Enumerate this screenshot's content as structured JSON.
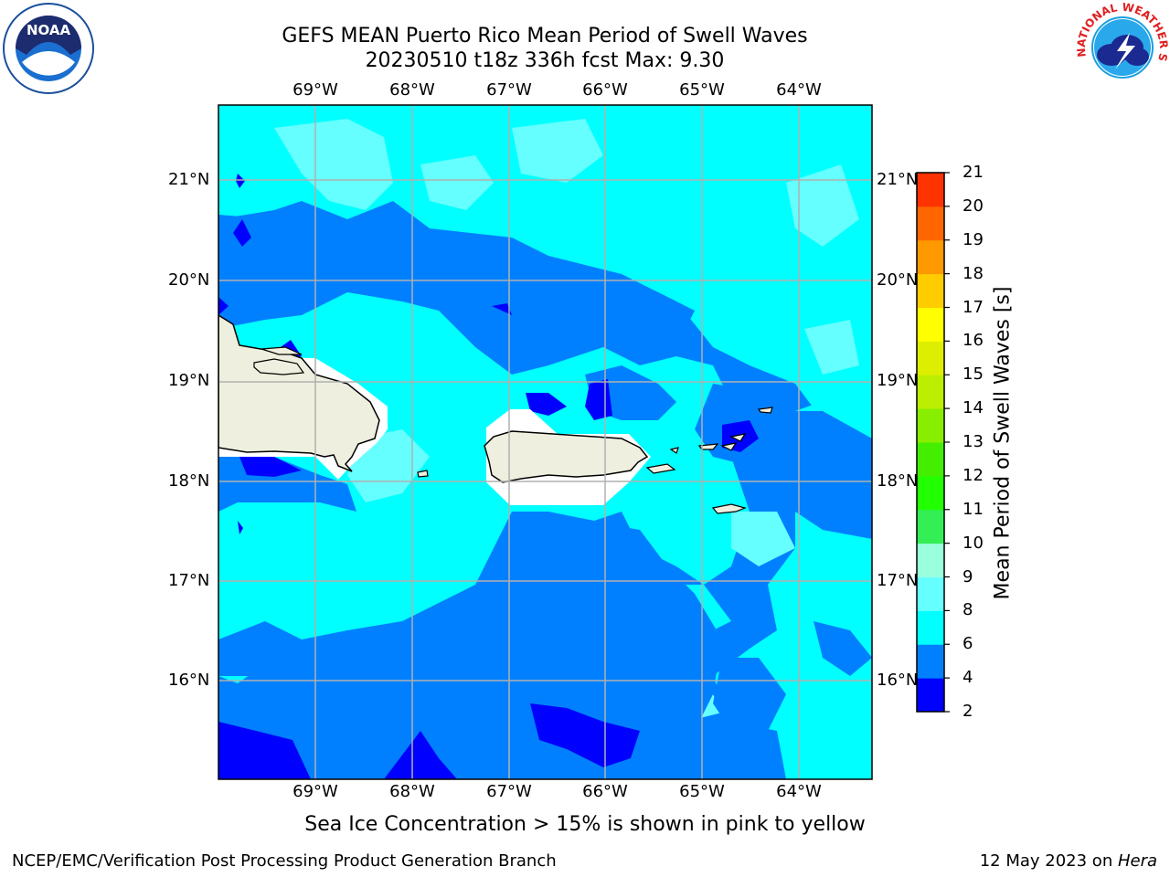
{
  "header": {
    "title_line1": "GEFS MEAN Puerto Rico Mean Period of Swell Waves",
    "title_line2": "20230510 t18z 336h fcst   Max: 9.30"
  },
  "logos": {
    "noaa_text": "NOAA",
    "nws_text": "NATIONAL WEATHER SERVICE"
  },
  "map": {
    "lon_labels": [
      "69°W",
      "68°W",
      "67°W",
      "66°W",
      "65°W",
      "64°W"
    ],
    "lat_labels": [
      "21°N",
      "20°N",
      "19°N",
      "18°N",
      "17°N",
      "16°N"
    ],
    "land_color": "#efefdf",
    "sea_colors": {
      "dark": "#0000ff",
      "mid": "#0080ff",
      "light": "#00ffff",
      "pale": "#66ffff",
      "palest": "#99ffdd"
    }
  },
  "colorbar": {
    "label": "Mean Period of Swell Waves [s]",
    "ticks": [
      "2",
      "4",
      "6",
      "8",
      "9",
      "10",
      "11",
      "12",
      "13",
      "14",
      "15",
      "16",
      "17",
      "18",
      "19",
      "20",
      "21"
    ],
    "colors": [
      "#0000ff",
      "#0080ff",
      "#00ffff",
      "#66ffff",
      "#99ffdd",
      "#33ee55",
      "#22ff00",
      "#44ee00",
      "#88ee00",
      "#bbee00",
      "#ddee00",
      "#ffff00",
      "#ffcc00",
      "#ff9900",
      "#ff6600",
      "#ff3300",
      "#ff0000"
    ]
  },
  "footer": {
    "sea_ice_note": "Sea Ice Concentration > 15% is shown in pink to yellow",
    "credit_left": "NCEP/EMC/Verification Post Processing Product Generation Branch",
    "credit_date": "12 May 2023 on ",
    "credit_host": "Hera"
  }
}
